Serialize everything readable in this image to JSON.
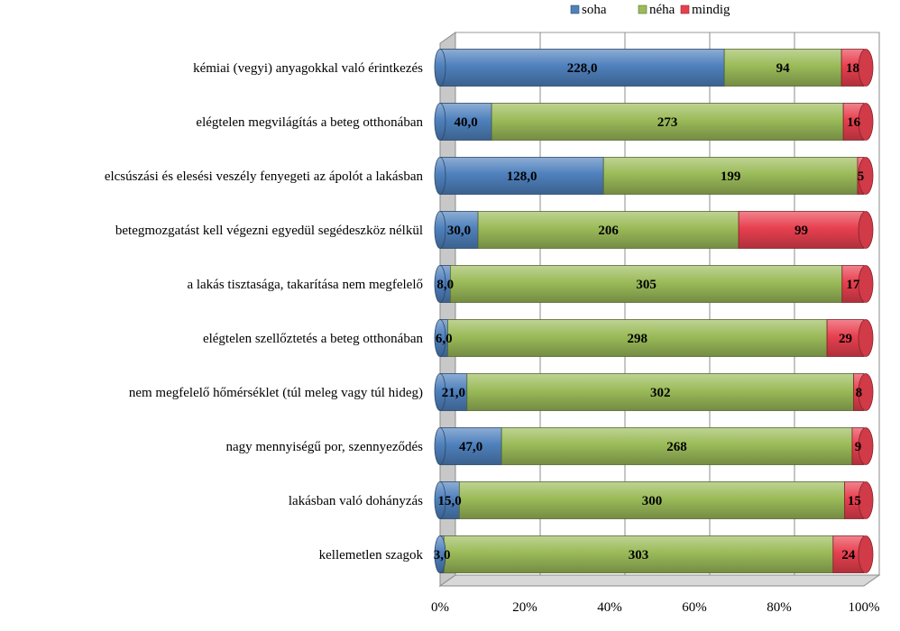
{
  "chart_data": {
    "type": "bar",
    "orientation": "horizontal",
    "stacking": "percent",
    "title": "",
    "xlabel": "",
    "ylabel": "",
    "xlim": [
      0,
      100
    ],
    "x_ticks": [
      "0%",
      "20%",
      "40%",
      "60%",
      "80%",
      "100%"
    ],
    "legend_position": "top",
    "categories": [
      "kémiai (vegyi) anyagokkal való érintkezés",
      "elégtelen megvilágítás a beteg otthonában",
      "elcsúszási és elesési veszély fenyegeti az ápolót a lakásban",
      "betegmozgatást kell végezni egyedül segédeszköz nélkül",
      "a lakás tisztasága, takarítása nem megfelelő",
      "elégtelen szellőztetés a beteg otthonában",
      "nem megfelelő hőmérséklet (túl meleg vagy túl hideg)",
      "nagy mennyiségű por, szennyeződés",
      "lakásban való dohányzás",
      "kellemetlen szagok"
    ],
    "series": [
      {
        "name": "soha",
        "color": "#4F81BD",
        "values": [
          228,
          40,
          128,
          30,
          8,
          6,
          21,
          47,
          15,
          3
        ],
        "labels": [
          "228,0",
          "40,0",
          "128,0",
          "30,0",
          "8,0",
          "6,0",
          "21,0",
          "47,0",
          "15,0",
          "3,0"
        ]
      },
      {
        "name": "néha",
        "color": "#9BBB59",
        "values": [
          94,
          273,
          199,
          206,
          305,
          298,
          302,
          268,
          300,
          303
        ],
        "labels": [
          "94",
          "273",
          "199",
          "206",
          "305",
          "298",
          "302",
          "268",
          "300",
          "303"
        ]
      },
      {
        "name": "mindig",
        "color": "#E8404F",
        "values": [
          18,
          16,
          5,
          99,
          17,
          29,
          8,
          9,
          15,
          24
        ],
        "labels": [
          "18",
          "16",
          "5",
          "99",
          "17",
          "29",
          "8",
          "9",
          "15",
          "24"
        ]
      }
    ]
  }
}
